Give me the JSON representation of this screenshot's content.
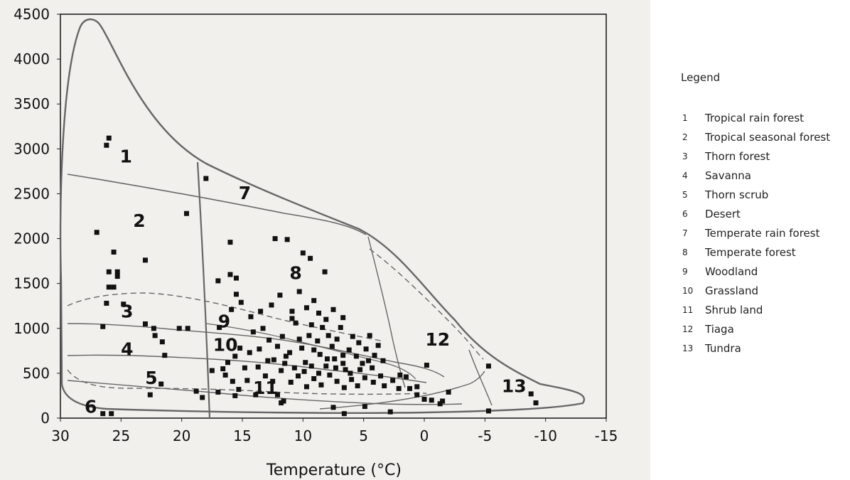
{
  "chart_data": {
    "type": "scatter",
    "title": "",
    "xlabel": "Temperature (°C)",
    "ylabel": "",
    "xlim": [
      30,
      -15
    ],
    "ylim": [
      0,
      4500
    ],
    "x_ticks": [
      "30",
      "25",
      "20",
      "15",
      "10",
      "5",
      "0",
      "-5",
      "-10",
      "-15"
    ],
    "y_ticks": [
      "0",
      "500",
      "1000",
      "1500",
      "2000",
      "2500",
      "3000",
      "3500",
      "4000",
      "4500"
    ],
    "points": [
      [
        26,
        3120
      ],
      [
        26.2,
        3040
      ],
      [
        18,
        2670
      ],
      [
        19.6,
        2280
      ],
      [
        27,
        2070
      ],
      [
        25.6,
        1850
      ],
      [
        25.3,
        1630
      ],
      [
        26,
        1630
      ],
      [
        25.3,
        1580
      ],
      [
        26,
        1460
      ],
      [
        25.6,
        1460
      ],
      [
        23,
        1760
      ],
      [
        16,
        1960
      ],
      [
        16,
        1600
      ],
      [
        15.5,
        1560
      ],
      [
        17,
        1530
      ],
      [
        15.5,
        1380
      ],
      [
        12.3,
        2000
      ],
      [
        11.3,
        1990
      ],
      [
        10,
        1840
      ],
      [
        9.4,
        1780
      ],
      [
        8.2,
        1630
      ],
      [
        26.2,
        1280
      ],
      [
        26.5,
        1020
      ],
      [
        24.8,
        1270
      ],
      [
        23,
        1050
      ],
      [
        22.3,
        1000
      ],
      [
        22.2,
        920
      ],
      [
        21.6,
        850
      ],
      [
        20.2,
        1000
      ],
      [
        19.5,
        1000
      ],
      [
        21.4,
        700
      ],
      [
        22.6,
        260
      ],
      [
        21.7,
        380
      ],
      [
        18.8,
        300
      ],
      [
        18.3,
        230
      ],
      [
        17,
        290
      ],
      [
        15.6,
        250
      ],
      [
        15.3,
        320
      ],
      [
        13.9,
        260
      ],
      [
        12.1,
        260
      ],
      [
        11.6,
        190
      ],
      [
        11.8,
        170
      ],
      [
        7.5,
        120
      ],
      [
        6.6,
        50
      ],
      [
        4.9,
        130
      ],
      [
        2.8,
        70
      ],
      [
        26.5,
        50
      ],
      [
        25.8,
        50
      ],
      [
        -5.3,
        80
      ],
      [
        -5.3,
        580
      ],
      [
        -8.8,
        270
      ],
      [
        -9.2,
        170
      ],
      [
        -1.5,
        190
      ],
      [
        -1.3,
        160
      ],
      [
        0.6,
        260
      ],
      [
        0,
        210
      ],
      [
        -0.6,
        200
      ],
      [
        -2,
        290
      ],
      [
        -0.2,
        590
      ],
      [
        1.5,
        460
      ],
      [
        2.6,
        420
      ],
      [
        3.3,
        360
      ],
      [
        2.1,
        330
      ],
      [
        1.2,
        330
      ],
      [
        0.6,
        350
      ],
      [
        2,
        480
      ],
      [
        16.6,
        550
      ],
      [
        17.5,
        530
      ],
      [
        16.4,
        480
      ],
      [
        16.2,
        620
      ],
      [
        15.6,
        690
      ],
      [
        15.2,
        780
      ],
      [
        14.8,
        560
      ],
      [
        14.4,
        730
      ],
      [
        14.1,
        960
      ],
      [
        13.6,
        770
      ],
      [
        13.3,
        1000
      ],
      [
        12.8,
        870
      ],
      [
        12.4,
        650
      ],
      [
        12.1,
        800
      ],
      [
        11.7,
        910
      ],
      [
        11.4,
        690
      ],
      [
        11.1,
        730
      ],
      [
        10.9,
        1110
      ],
      [
        10.6,
        1060
      ],
      [
        10.3,
        880
      ],
      [
        10.1,
        780
      ],
      [
        9.8,
        620
      ],
      [
        9.5,
        920
      ],
      [
        9.3,
        1040
      ],
      [
        9.1,
        760
      ],
      [
        8.8,
        860
      ],
      [
        8.6,
        710
      ],
      [
        8.4,
        1010
      ],
      [
        8.1,
        580
      ],
      [
        7.9,
        920
      ],
      [
        7.6,
        800
      ],
      [
        7.4,
        660
      ],
      [
        7.2,
        880
      ],
      [
        6.9,
        1010
      ],
      [
        6.7,
        700
      ],
      [
        6.5,
        540
      ],
      [
        6.2,
        760
      ],
      [
        5.9,
        910
      ],
      [
        5.6,
        690
      ],
      [
        5.4,
        840
      ],
      [
        5.1,
        610
      ],
      [
        4.8,
        770
      ],
      [
        4.5,
        920
      ],
      [
        4.3,
        560
      ],
      [
        4.1,
        700
      ],
      [
        3.8,
        810
      ],
      [
        3.4,
        640
      ],
      [
        16.9,
        1010
      ],
      [
        15.9,
        1210
      ],
      [
        15.1,
        1290
      ],
      [
        14.3,
        1130
      ],
      [
        13.5,
        1190
      ],
      [
        12.6,
        1260
      ],
      [
        11.9,
        1370
      ],
      [
        10.9,
        1190
      ],
      [
        10.3,
        1410
      ],
      [
        9.7,
        1230
      ],
      [
        9.1,
        1310
      ],
      [
        8.7,
        1170
      ],
      [
        8.1,
        1100
      ],
      [
        7.5,
        1210
      ],
      [
        6.7,
        1120
      ],
      [
        13.1,
        470
      ],
      [
        12.5,
        410
      ],
      [
        11.8,
        530
      ],
      [
        11,
        400
      ],
      [
        10.4,
        470
      ],
      [
        9.7,
        350
      ],
      [
        9.1,
        440
      ],
      [
        8.5,
        370
      ],
      [
        7.8,
        480
      ],
      [
        7.2,
        410
      ],
      [
        6.6,
        340
      ],
      [
        6,
        430
      ],
      [
        5.5,
        360
      ],
      [
        4.9,
        450
      ],
      [
        4.2,
        400
      ],
      [
        3.6,
        470
      ],
      [
        15.8,
        410
      ],
      [
        14.6,
        420
      ],
      [
        13.7,
        570
      ],
      [
        12.9,
        640
      ],
      [
        11.5,
        610
      ],
      [
        10.7,
        560
      ],
      [
        9.9,
        520
      ],
      [
        9.3,
        580
      ],
      [
        8.7,
        500
      ],
      [
        8,
        660
      ],
      [
        7.3,
        560
      ],
      [
        6.7,
        610
      ],
      [
        6.1,
        500
      ],
      [
        5.3,
        540
      ],
      [
        4.6,
        640
      ]
    ],
    "region_labels": [
      {
        "text": "1",
        "x": 24.6,
        "y": 2850
      },
      {
        "text": "2",
        "x": 23.5,
        "y": 2130
      },
      {
        "text": "3",
        "x": 24.5,
        "y": 1120
      },
      {
        "text": "4",
        "x": 24.5,
        "y": 700
      },
      {
        "text": "5",
        "x": 22.5,
        "y": 380
      },
      {
        "text": "6",
        "x": 27.5,
        "y": 60
      },
      {
        "text": "7",
        "x": 14.8,
        "y": 2440
      },
      {
        "text": "8",
        "x": 10.6,
        "y": 1550
      },
      {
        "text": "9",
        "x": 16.5,
        "y": 1010
      },
      {
        "text": "10",
        "x": 16.4,
        "y": 750
      },
      {
        "text": "11",
        "x": 13.1,
        "y": 270
      },
      {
        "text": "12",
        "x": -1.1,
        "y": 810
      },
      {
        "text": "13",
        "x": -7.4,
        "y": 290
      }
    ]
  },
  "legend": {
    "title": "Legend",
    "items": [
      {
        "num": "1",
        "label": "Tropical rain forest"
      },
      {
        "num": "2",
        "label": "Tropical seasonal forest"
      },
      {
        "num": "3",
        "label": "Thorn forest"
      },
      {
        "num": "4",
        "label": "Savanna"
      },
      {
        "num": "5",
        "label": "Thorn scrub"
      },
      {
        "num": "6",
        "label": "Desert"
      },
      {
        "num": "7",
        "label": "Temperate rain forest"
      },
      {
        "num": "8",
        "label": "Temperate forest"
      },
      {
        "num": "9",
        "label": "Woodland"
      },
      {
        "num": "10",
        "label": "Grassland"
      },
      {
        "num": "11",
        "label": "Shrub land"
      },
      {
        "num": "12",
        "label": "Tiaga"
      },
      {
        "num": "13",
        "label": "Tundra"
      }
    ]
  },
  "colors": {
    "line": "#666666",
    "marker": "#111111",
    "background": "#f1f0ed"
  }
}
